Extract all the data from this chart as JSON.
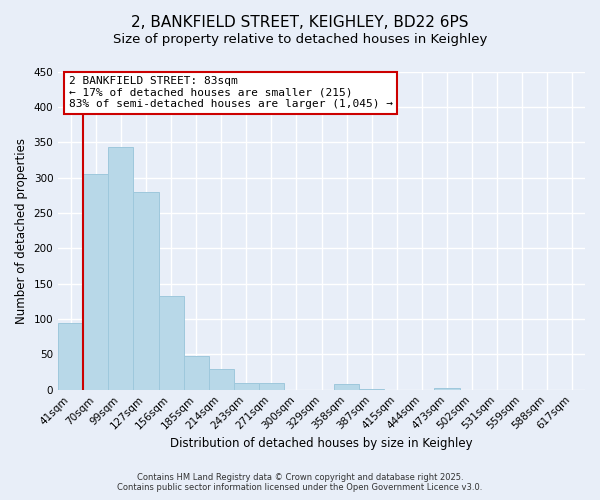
{
  "title": "2, BANKFIELD STREET, KEIGHLEY, BD22 6PS",
  "subtitle": "Size of property relative to detached houses in Keighley",
  "xlabel": "Distribution of detached houses by size in Keighley",
  "ylabel": "Number of detached properties",
  "bar_labels": [
    "41sqm",
    "70sqm",
    "99sqm",
    "127sqm",
    "156sqm",
    "185sqm",
    "214sqm",
    "243sqm",
    "271sqm",
    "300sqm",
    "329sqm",
    "358sqm",
    "387sqm",
    "415sqm",
    "444sqm",
    "473sqm",
    "502sqm",
    "531sqm",
    "559sqm",
    "588sqm",
    "617sqm"
  ],
  "bar_values": [
    95,
    305,
    343,
    280,
    132,
    47,
    30,
    10,
    9,
    0,
    0,
    8,
    1,
    0,
    0,
    2,
    0,
    0,
    0,
    0,
    0
  ],
  "bar_color": "#b8d8e8",
  "bar_edge_color": "#9ec8dc",
  "vline_color": "#cc0000",
  "vline_x_index": 1,
  "ylim": [
    0,
    450
  ],
  "yticks": [
    0,
    50,
    100,
    150,
    200,
    250,
    300,
    350,
    400,
    450
  ],
  "annotation_title": "2 BANKFIELD STREET: 83sqm",
  "annotation_line1": "← 17% of detached houses are smaller (215)",
  "annotation_line2": "83% of semi-detached houses are larger (1,045) →",
  "annotation_box_facecolor": "#ffffff",
  "annotation_box_edgecolor": "#cc0000",
  "footer1": "Contains HM Land Registry data © Crown copyright and database right 2025.",
  "footer2": "Contains public sector information licensed under the Open Government Licence v3.0.",
  "bg_color": "#e8eef8",
  "plot_bg_color": "#e8eef8",
  "grid_color": "#ffffff",
  "title_fontsize": 11,
  "axis_label_fontsize": 8.5,
  "tick_fontsize": 7.5
}
